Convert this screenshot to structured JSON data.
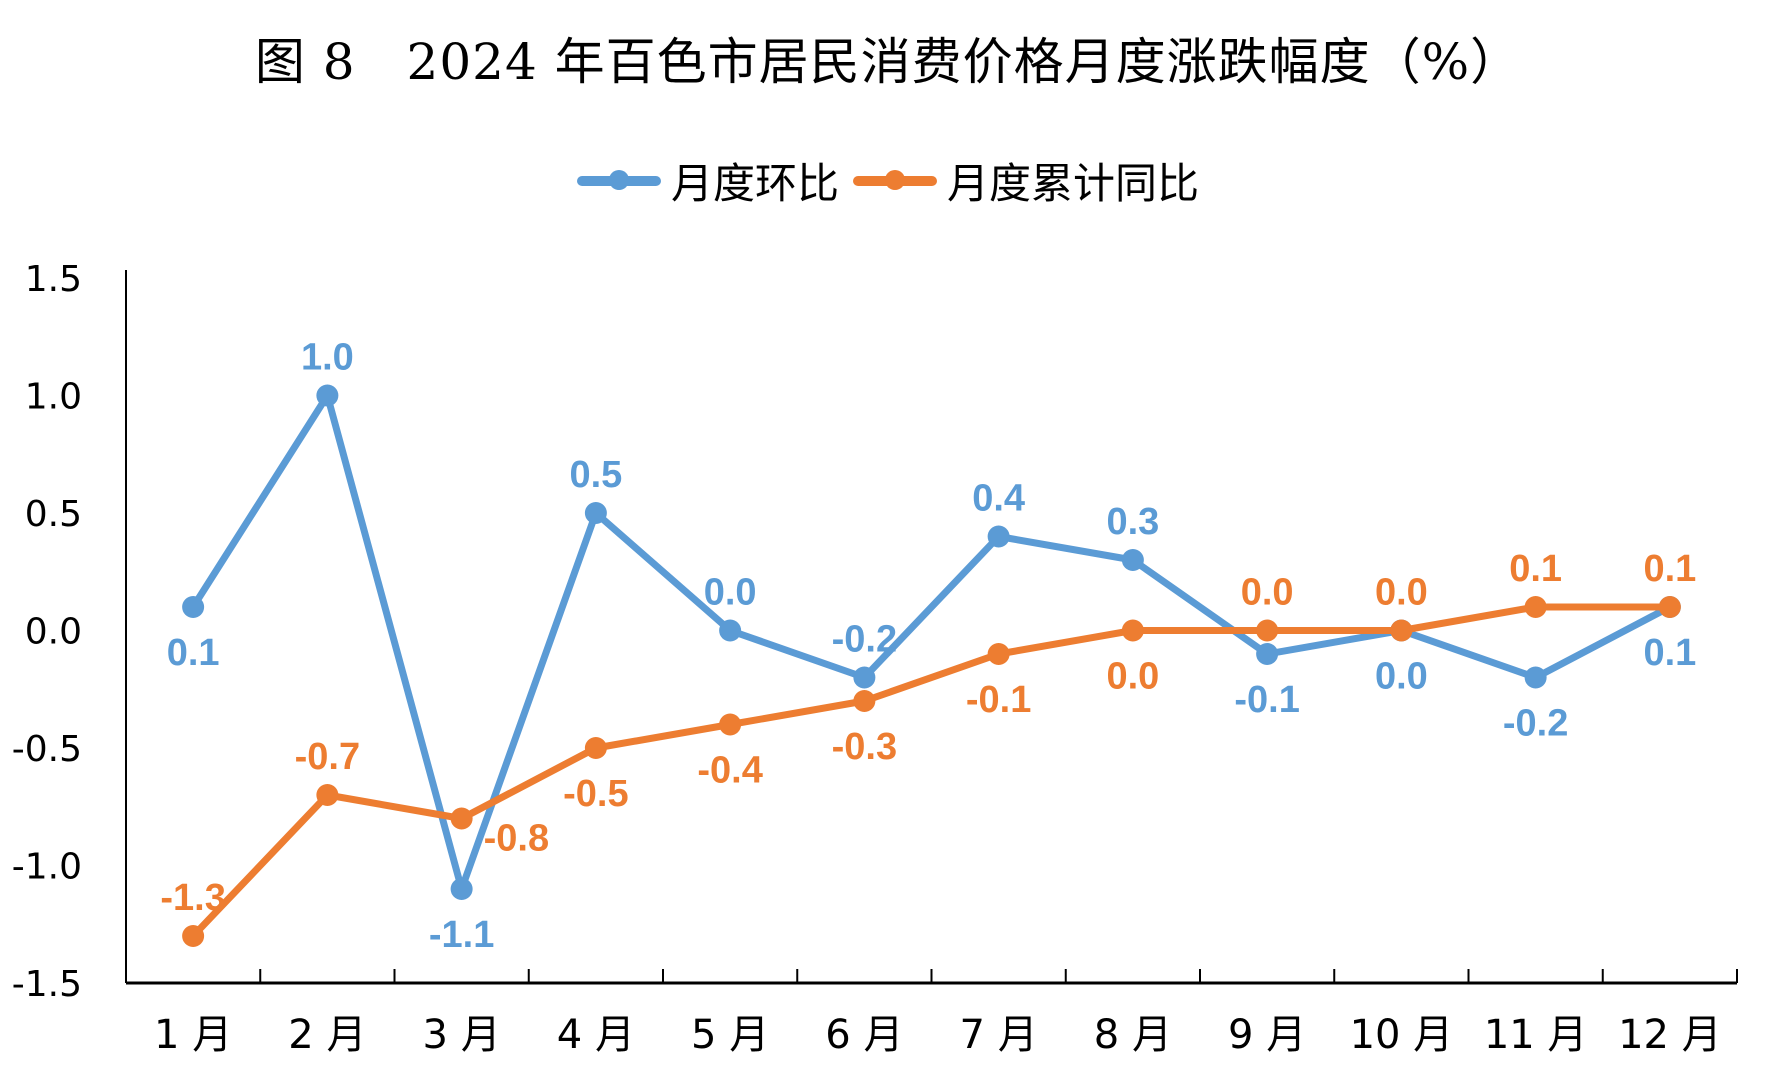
{
  "chart_data": {
    "type": "line",
    "title": "图 8　2024 年百色市居民消费价格月度涨跌幅度（%）",
    "xlabel": "",
    "ylabel": "",
    "categories": [
      "1 月",
      "2 月",
      "3 月",
      "4 月",
      "5 月",
      "6 月",
      "7 月",
      "8 月",
      "9 月",
      "10 月",
      "11 月",
      "12 月"
    ],
    "ylim": [
      -1.5,
      1.5
    ],
    "yticks": [
      "1.5",
      "1.0",
      "0.5",
      "0.0",
      "-0.5",
      "-1.0",
      "-1.5"
    ],
    "ytick_values": [
      1.5,
      1.0,
      0.5,
      0.0,
      -0.5,
      -1.0,
      -1.5
    ],
    "grid": false,
    "legend_position": "top-center",
    "series": [
      {
        "name": "月度环比",
        "color": "#5B9BD5",
        "values": [
          0.1,
          1.0,
          -1.1,
          0.5,
          0.0,
          -0.2,
          0.4,
          0.3,
          -0.1,
          0.0,
          -0.2,
          0.1
        ],
        "labels": [
          "0.1",
          "1.0",
          "-1.1",
          "0.5",
          "0.0",
          "-0.2",
          "0.4",
          "0.3",
          "-0.1",
          "0.0",
          "-0.2",
          "0.1"
        ],
        "label_side": [
          "below",
          "above",
          "below",
          "above",
          "above",
          "above",
          "above",
          "above",
          "below",
          "below",
          "below",
          "below"
        ]
      },
      {
        "name": "月度累计同比",
        "color": "#ED7D31",
        "values": [
          -1.3,
          -0.7,
          -0.8,
          -0.5,
          -0.4,
          -0.3,
          -0.1,
          0.0,
          0.0,
          0.0,
          0.1,
          0.1
        ],
        "labels": [
          "-1.3",
          "-0.7",
          "-0.8",
          "-0.5",
          "-0.4",
          "-0.3",
          "-0.1",
          "0.0",
          "0.0",
          "0.0",
          "0.1",
          "0.1"
        ],
        "label_side": [
          "above",
          "above",
          "right",
          "below",
          "below",
          "below",
          "below",
          "below",
          "above",
          "above",
          "above",
          "above"
        ]
      }
    ]
  }
}
